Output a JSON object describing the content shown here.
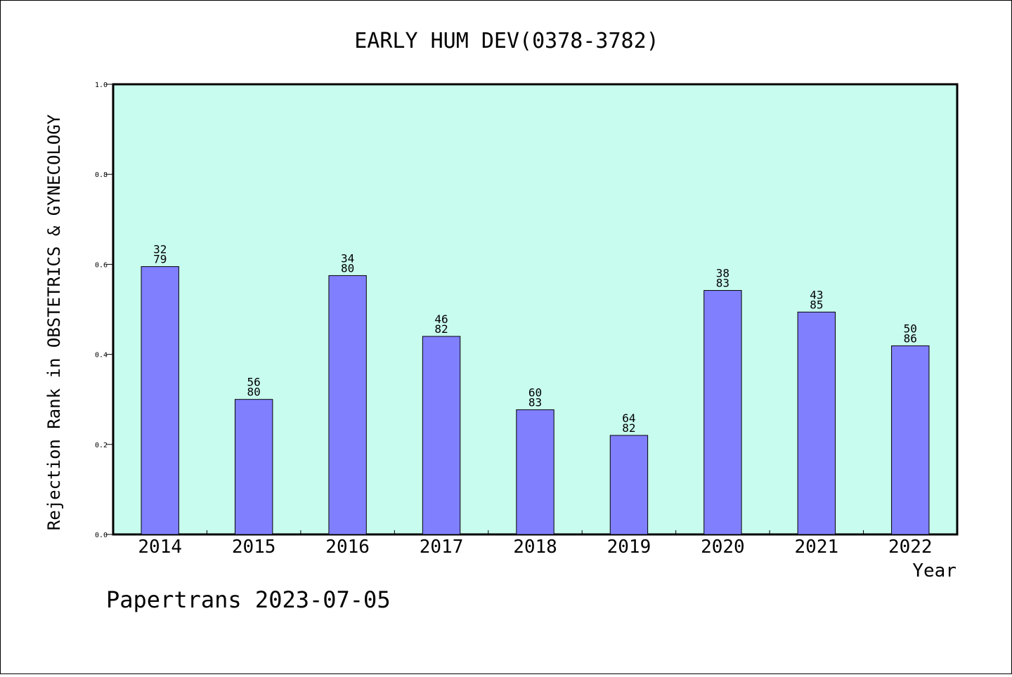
{
  "chart_data": {
    "type": "bar",
    "title": "EARLY HUM DEV(0378-3782)",
    "xlabel": "Year",
    "ylabel": "Rejection Rank in OBSTETRICS & GYNECOLOGY",
    "footer": "Papertrans 2023-07-05",
    "ylim": [
      0.0,
      1.0
    ],
    "yticks": [
      "0.0",
      "0.2",
      "0.4",
      "0.6",
      "0.8",
      "1.0"
    ],
    "grid": false,
    "categories": [
      "2014",
      "2015",
      "2016",
      "2017",
      "2018",
      "2019",
      "2020",
      "2021",
      "2022"
    ],
    "values": [
      0.595,
      0.3,
      0.575,
      0.44,
      0.277,
      0.22,
      0.542,
      0.494,
      0.419
    ],
    "label_top": [
      "32",
      "56",
      "34",
      "46",
      "60",
      "64",
      "38",
      "43",
      "50"
    ],
    "label_bottom": [
      "79",
      "80",
      "80",
      "82",
      "83",
      "82",
      "83",
      "85",
      "86"
    ],
    "colors": {
      "plot_background": "#c8fcee",
      "bar_fill": "#8080ff",
      "bar_stroke": "#000000"
    }
  }
}
